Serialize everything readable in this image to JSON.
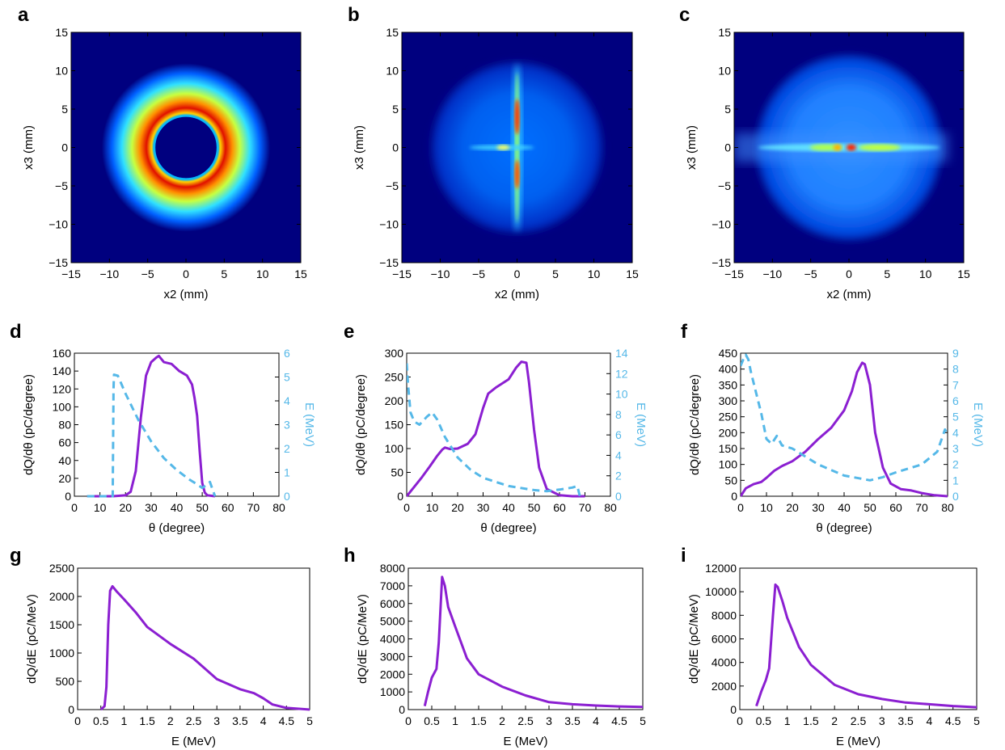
{
  "colors": {
    "purple": "#8b1fd1",
    "cyan": "#55b8e8",
    "colormap": [
      "#00007f",
      "#0000ff",
      "#0080ff",
      "#00ffff",
      "#80ff80",
      "#ffff00",
      "#ff8000",
      "#ff0000",
      "#800000"
    ]
  },
  "chart_data": [
    {
      "panel": "a",
      "type": "heatmap",
      "xlabel": "x2 (mm)",
      "ylabel": "x3 (mm)",
      "xlim": [
        -15,
        15
      ],
      "ylim": [
        -15,
        15
      ],
      "xticks": [
        -15,
        -10,
        -5,
        0,
        5,
        10,
        15
      ],
      "yticks": [
        -15,
        -10,
        -5,
        0,
        5,
        10,
        15
      ],
      "pattern": "ring",
      "ring": {
        "inner_radius": 4,
        "peak_radius": 5.5,
        "outer_radius": 11
      }
    },
    {
      "panel": "b",
      "type": "heatmap",
      "xlabel": "x2 (mm)",
      "ylabel": "x3 (mm)",
      "xlim": [
        -15,
        15
      ],
      "ylim": [
        -15,
        15
      ],
      "xticks": [
        -15,
        -10,
        -5,
        0,
        5,
        10,
        15
      ],
      "yticks": [
        -15,
        -10,
        -5,
        0,
        5,
        10,
        15
      ],
      "pattern": "disk with vertical spike",
      "disk_radius": 11.5
    },
    {
      "panel": "c",
      "type": "heatmap",
      "xlabel": "x2 (mm)",
      "ylabel": "x3 (mm)",
      "xlim": [
        -15,
        15
      ],
      "ylim": [
        -15,
        15
      ],
      "xticks": [
        -15,
        -10,
        -5,
        0,
        5,
        10,
        15
      ],
      "yticks": [
        -15,
        -10,
        -5,
        0,
        5,
        10,
        15
      ],
      "pattern": "disk with horizontal band",
      "disk_radius": 12.5
    },
    {
      "panel": "d",
      "type": "line",
      "xlabel": "θ (degree)",
      "ylabel": "dQ/dθ (pC/degree)",
      "ylabel_right": "E (MeV)",
      "xlim": [
        0,
        80
      ],
      "ylim": [
        0,
        160
      ],
      "ylim_right": [
        0,
        6
      ],
      "xticks": [
        0,
        10,
        20,
        30,
        40,
        50,
        60,
        70,
        80
      ],
      "yticks": [
        0,
        20,
        40,
        60,
        80,
        100,
        120,
        140,
        160
      ],
      "yticks_right": [
        0,
        1,
        2,
        3,
        4,
        5,
        6
      ],
      "series": [
        {
          "axis": "left",
          "style": "solid",
          "x": [
            5,
            15,
            20,
            22,
            24,
            26,
            28,
            30,
            32,
            33,
            35,
            38,
            41,
            44,
            46,
            47,
            48,
            49,
            50,
            51,
            52,
            55
          ],
          "y": [
            0,
            0,
            1,
            5,
            28,
            88,
            135,
            150,
            155,
            157,
            150,
            148,
            140,
            135,
            125,
            110,
            90,
            50,
            15,
            4,
            1,
            0
          ]
        },
        {
          "axis": "right",
          "style": "dashed",
          "x": [
            5,
            15,
            15.3,
            15.5,
            17,
            20,
            25,
            30,
            35,
            40,
            45,
            48,
            50,
            52,
            53,
            55
          ],
          "y": [
            0,
            0,
            4.5,
            5.1,
            5.05,
            4.3,
            3.2,
            2.3,
            1.6,
            1.1,
            0.7,
            0.5,
            0.35,
            0.5,
            0.6,
            0
          ]
        }
      ]
    },
    {
      "panel": "e",
      "type": "line",
      "xlabel": "θ (degree)",
      "ylabel": "dQ/dθ (pC/degree)",
      "ylabel_right": "E (MeV)",
      "xlim": [
        0,
        80
      ],
      "ylim": [
        0,
        300
      ],
      "ylim_right": [
        0,
        14
      ],
      "xticks": [
        0,
        10,
        20,
        30,
        40,
        50,
        60,
        70,
        80
      ],
      "yticks": [
        0,
        50,
        100,
        150,
        200,
        250,
        300
      ],
      "yticks_right": [
        0,
        2,
        4,
        6,
        8,
        10,
        12,
        14
      ],
      "series": [
        {
          "axis": "left",
          "style": "solid",
          "x": [
            0,
            3,
            6,
            9,
            12,
            14,
            15,
            17,
            20,
            24,
            27,
            30,
            32,
            35,
            40,
            43,
            45,
            47,
            48,
            50,
            52,
            55,
            60,
            65,
            70
          ],
          "y": [
            0,
            20,
            40,
            62,
            85,
            98,
            102,
            99,
            100,
            110,
            130,
            185,
            215,
            228,
            245,
            270,
            282,
            280,
            240,
            140,
            60,
            15,
            2,
            0,
            0
          ]
        },
        {
          "axis": "right",
          "style": "dashed",
          "x": [
            0,
            0.5,
            1.5,
            3,
            5,
            8,
            10,
            12,
            15,
            20,
            25,
            30,
            40,
            50,
            55,
            60,
            65,
            67,
            68
          ],
          "y": [
            13,
            11,
            8.2,
            7.3,
            7.0,
            7.8,
            8.2,
            7.5,
            5.8,
            3.8,
            2.6,
            1.8,
            1.0,
            0.6,
            0.5,
            0.65,
            0.85,
            1.0,
            0
          ]
        }
      ]
    },
    {
      "panel": "f",
      "type": "line",
      "xlabel": "θ (degree)",
      "ylabel": "dQ/dθ (pC/degree)",
      "ylabel_right": "E (MeV)",
      "xlim": [
        0,
        80
      ],
      "ylim": [
        0,
        450
      ],
      "ylim_right": [
        0,
        9
      ],
      "xticks": [
        0,
        10,
        20,
        30,
        40,
        50,
        60,
        70,
        80
      ],
      "yticks": [
        0,
        50,
        100,
        150,
        200,
        250,
        300,
        350,
        400,
        450
      ],
      "yticks_right": [
        0,
        1,
        2,
        3,
        4,
        5,
        6,
        7,
        8,
        9
      ],
      "series": [
        {
          "axis": "left",
          "style": "solid",
          "x": [
            0,
            2,
            5,
            8,
            10,
            13,
            16,
            20,
            25,
            30,
            35,
            40,
            43,
            45,
            47,
            48,
            50,
            52,
            55,
            58,
            62,
            66,
            70,
            75,
            80
          ],
          "y": [
            0,
            25,
            38,
            45,
            58,
            80,
            95,
            110,
            140,
            180,
            215,
            270,
            330,
            390,
            420,
            415,
            350,
            200,
            90,
            40,
            22,
            18,
            10,
            3,
            0
          ]
        },
        {
          "axis": "right",
          "style": "dashed",
          "x": [
            0,
            1,
            2,
            3,
            4,
            6,
            8,
            9,
            10,
            12,
            14,
            16,
            20,
            30,
            40,
            50,
            55,
            60,
            70,
            76,
            79,
            80
          ],
          "y": [
            8.2,
            8.6,
            8.9,
            8.6,
            7.8,
            6.5,
            5.2,
            4.4,
            3.6,
            3.3,
            3.8,
            3.2,
            3.0,
            2.0,
            1.3,
            1.0,
            1.2,
            1.5,
            2.0,
            2.8,
            4.2,
            3.8
          ]
        }
      ]
    },
    {
      "panel": "g",
      "type": "line",
      "xlabel": "E (MeV)",
      "ylabel": "dQ/dE (pC/MeV)",
      "xlim": [
        0,
        5
      ],
      "ylim": [
        0,
        2500
      ],
      "xticks": [
        0,
        0.5,
        1,
        1.5,
        2,
        2.5,
        3,
        3.5,
        4,
        4.5,
        5
      ],
      "yticks": [
        0,
        500,
        1000,
        1500,
        2000,
        2500
      ],
      "series": [
        {
          "axis": "left",
          "style": "solid",
          "x": [
            0.5,
            0.58,
            0.62,
            0.66,
            0.7,
            0.75,
            0.85,
            1.0,
            1.25,
            1.5,
            2.0,
            2.5,
            3.0,
            3.5,
            3.8,
            4.0,
            4.2,
            4.5,
            5.0
          ],
          "y": [
            0,
            60,
            400,
            1500,
            2100,
            2180,
            2080,
            1950,
            1720,
            1460,
            1160,
            900,
            540,
            360,
            290,
            200,
            90,
            30,
            0
          ]
        }
      ]
    },
    {
      "panel": "h",
      "type": "line",
      "xlabel": "E (MeV)",
      "ylabel": "dQ/dE (pC/MeV)",
      "xlim": [
        0,
        5
      ],
      "ylim": [
        0,
        8000
      ],
      "xticks": [
        0,
        0.5,
        1,
        1.5,
        2,
        2.5,
        3,
        3.5,
        4,
        4.5,
        5
      ],
      "yticks": [
        0,
        1000,
        2000,
        3000,
        4000,
        5000,
        6000,
        7000,
        8000
      ],
      "series": [
        {
          "axis": "left",
          "style": "solid",
          "x": [
            0.35,
            0.42,
            0.5,
            0.6,
            0.65,
            0.72,
            0.78,
            0.85,
            1.0,
            1.25,
            1.5,
            2.0,
            2.5,
            3.0,
            3.5,
            4.0,
            4.5,
            5.0
          ],
          "y": [
            200,
            1000,
            1800,
            2300,
            3800,
            7500,
            7000,
            5800,
            4700,
            2900,
            2000,
            1300,
            800,
            420,
            300,
            230,
            180,
            150
          ]
        }
      ]
    },
    {
      "panel": "i",
      "type": "line",
      "xlabel": "E (MeV)",
      "ylabel": "dQ/dE (pC/MeV)",
      "xlim": [
        0,
        5
      ],
      "ylim": [
        0,
        12000
      ],
      "xticks": [
        0,
        0.5,
        1,
        1.5,
        2,
        2.5,
        3,
        3.5,
        4,
        4.5,
        5
      ],
      "yticks": [
        0,
        2000,
        4000,
        6000,
        8000,
        10000,
        12000
      ],
      "series": [
        {
          "axis": "left",
          "style": "solid",
          "x": [
            0.35,
            0.45,
            0.55,
            0.62,
            0.7,
            0.75,
            0.8,
            0.9,
            1.0,
            1.25,
            1.5,
            2.0,
            2.5,
            3.0,
            3.5,
            4.0,
            4.5,
            5.0
          ],
          "y": [
            300,
            1500,
            2500,
            3500,
            8000,
            10600,
            10400,
            9200,
            7800,
            5300,
            3800,
            2100,
            1300,
            900,
            600,
            450,
            300,
            200
          ]
        }
      ]
    }
  ]
}
